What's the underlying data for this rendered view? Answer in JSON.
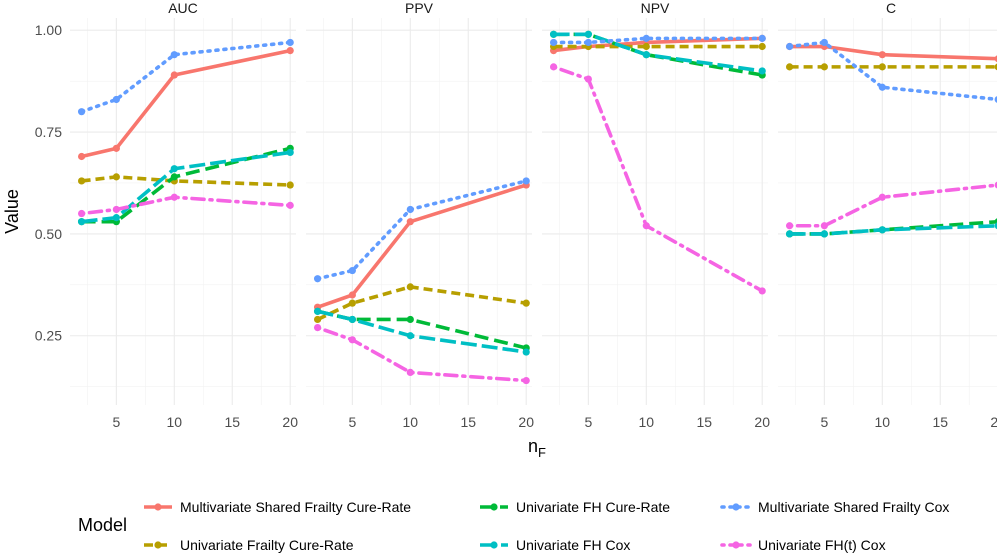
{
  "chart_data": {
    "type": "line",
    "facet_by": "metric",
    "xlabel": "n",
    "xlabel_subscript": "F",
    "ylabel": "Value",
    "xlim": [
      1,
      20.5
    ],
    "ylim": [
      0.08,
      1.03
    ],
    "x_ticks": [
      5,
      10,
      15,
      20
    ],
    "y_ticks": [
      0.25,
      0.5,
      0.75,
      1.0
    ],
    "y_tick_labels": [
      "0.25",
      "0.50",
      "0.75",
      "1.00"
    ],
    "grid": true,
    "panel_background": "#ebebeb",
    "legend": {
      "title": "Model",
      "position": "bottom",
      "entries": [
        "Multivariate Shared Frailty Cure-Rate",
        "Univariate FH Cure-Rate",
        "Multivariate Shared Frailty Cox",
        "Univariate Frailty Cure-Rate",
        "Univariate FH Cox",
        "Univariate FH(t) Cox"
      ]
    },
    "series_styles": [
      {
        "name": "Multivariate Shared Frailty Cure-Rate",
        "color": "#F8766D",
        "dash": "solid"
      },
      {
        "name": "Univariate Frailty Cure-Rate",
        "color": "#B79F00",
        "dash": "dashed"
      },
      {
        "name": "Univariate FH Cure-Rate",
        "color": "#00BA38",
        "dash": "longdash"
      },
      {
        "name": "Univariate FH Cox",
        "color": "#00BFC4",
        "dash": "longdash2"
      },
      {
        "name": "Multivariate Shared Frailty Cox",
        "color": "#619CFF",
        "dash": "dotted"
      },
      {
        "name": "Univariate FH(t) Cox",
        "color": "#F564E3",
        "dash": "dotdash"
      }
    ],
    "x": [
      2,
      5,
      10,
      20
    ],
    "panels": [
      {
        "title": "AUC",
        "series": [
          {
            "name": "Multivariate Shared Frailty Cure-Rate",
            "values": [
              0.69,
              0.71,
              0.89,
              0.95
            ]
          },
          {
            "name": "Univariate Frailty Cure-Rate",
            "values": [
              0.63,
              0.64,
              0.63,
              0.62
            ]
          },
          {
            "name": "Univariate FH Cure-Rate",
            "values": [
              0.53,
              0.53,
              0.64,
              0.71
            ]
          },
          {
            "name": "Univariate FH Cox",
            "values": [
              0.53,
              0.54,
              0.66,
              0.7
            ]
          },
          {
            "name": "Multivariate Shared Frailty Cox",
            "values": [
              0.8,
              0.83,
              0.94,
              0.97
            ]
          },
          {
            "name": "Univariate FH(t) Cox",
            "values": [
              0.55,
              0.56,
              0.59,
              0.57
            ]
          }
        ]
      },
      {
        "title": "PPV",
        "series": [
          {
            "name": "Multivariate Shared Frailty Cure-Rate",
            "values": [
              0.32,
              0.35,
              0.53,
              0.62
            ]
          },
          {
            "name": "Univariate Frailty Cure-Rate",
            "values": [
              0.29,
              0.33,
              0.37,
              0.33
            ]
          },
          {
            "name": "Univariate FH Cure-Rate",
            "values": [
              0.31,
              0.29,
              0.29,
              0.22
            ]
          },
          {
            "name": "Univariate FH Cox",
            "values": [
              0.31,
              0.29,
              0.25,
              0.21
            ]
          },
          {
            "name": "Multivariate Shared Frailty Cox",
            "values": [
              0.39,
              0.41,
              0.56,
              0.63
            ]
          },
          {
            "name": "Univariate FH(t) Cox",
            "values": [
              0.27,
              0.24,
              0.16,
              0.14
            ]
          }
        ]
      },
      {
        "title": "NPV",
        "series": [
          {
            "name": "Multivariate Shared Frailty Cure-Rate",
            "values": [
              0.95,
              0.96,
              0.97,
              0.98
            ]
          },
          {
            "name": "Univariate Frailty Cure-Rate",
            "values": [
              0.96,
              0.96,
              0.96,
              0.96
            ]
          },
          {
            "name": "Univariate FH Cure-Rate",
            "values": [
              0.99,
              0.99,
              0.94,
              0.89
            ]
          },
          {
            "name": "Univariate FH Cox",
            "values": [
              0.99,
              0.99,
              0.94,
              0.9
            ]
          },
          {
            "name": "Multivariate Shared Frailty Cox",
            "values": [
              0.97,
              0.97,
              0.98,
              0.98
            ]
          },
          {
            "name": "Univariate FH(t) Cox",
            "values": [
              0.91,
              0.88,
              0.52,
              0.36
            ]
          }
        ]
      },
      {
        "title": "C",
        "series": [
          {
            "name": "Multivariate Shared Frailty Cure-Rate",
            "values": [
              0.96,
              0.96,
              0.94,
              0.93
            ]
          },
          {
            "name": "Univariate Frailty Cure-Rate",
            "values": [
              0.91,
              0.91,
              0.91,
              0.91
            ]
          },
          {
            "name": "Univariate FH Cure-Rate",
            "values": [
              0.5,
              0.5,
              0.51,
              0.53
            ]
          },
          {
            "name": "Univariate FH Cox",
            "values": [
              0.5,
              0.5,
              0.51,
              0.52
            ]
          },
          {
            "name": "Multivariate Shared Frailty Cox",
            "values": [
              0.96,
              0.97,
              0.86,
              0.83
            ]
          },
          {
            "name": "Univariate FH(t) Cox",
            "values": [
              0.52,
              0.52,
              0.59,
              0.62
            ]
          }
        ]
      }
    ]
  }
}
